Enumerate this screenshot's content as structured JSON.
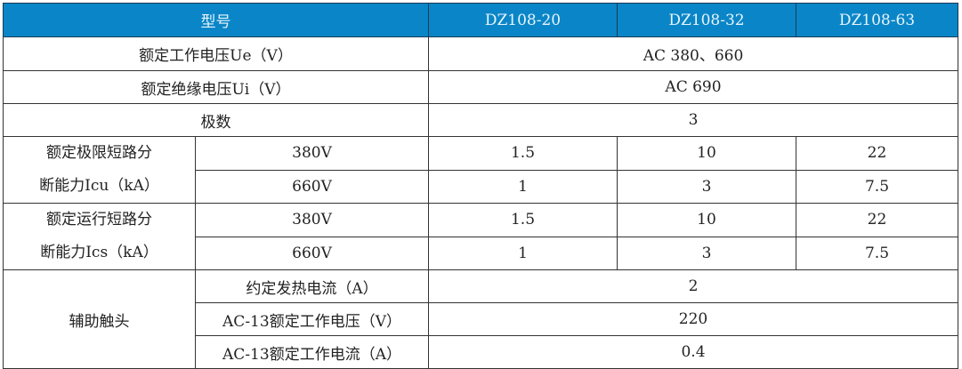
{
  "header": {
    "model_label": "型号",
    "models": [
      "DZ108-20",
      "DZ108-32",
      "DZ108-63"
    ]
  },
  "rows": {
    "rated_voltage": {
      "label": "额定工作电压Ue（V）",
      "value": "AC 380、660"
    },
    "insulation_voltage": {
      "label": "额定绝缘电压Ui（V）",
      "value": "AC 690"
    },
    "poles": {
      "label": "极数",
      "value": "3"
    },
    "icu": {
      "label_line1": "额定极限短路分",
      "label_line2": "断能力Icu（kA）",
      "sub": [
        {
          "voltage": "380V",
          "values": [
            "1.5",
            "10",
            "22"
          ]
        },
        {
          "voltage": "660V",
          "values": [
            "1",
            "3",
            "7.5"
          ]
        }
      ]
    },
    "ics": {
      "label_line1": "额定运行短路分",
      "label_line2": "断能力Ics（kA）",
      "sub": [
        {
          "voltage": "380V",
          "values": [
            "1.5",
            "10",
            "22"
          ]
        },
        {
          "voltage": "660V",
          "values": [
            "1",
            "3",
            "7.5"
          ]
        }
      ]
    },
    "aux": {
      "label": "辅助触头",
      "sub": [
        {
          "label": "约定发热电流（A）",
          "value": "2"
        },
        {
          "label": "AC-13额定工作电压（V）",
          "value": "220"
        },
        {
          "label": "AC-13额定工作电流（A）",
          "value": "0.4"
        }
      ]
    }
  },
  "colors": {
    "header_bg": "#0a86c8",
    "header_text": "#e8f4fb",
    "border": "#333333"
  }
}
